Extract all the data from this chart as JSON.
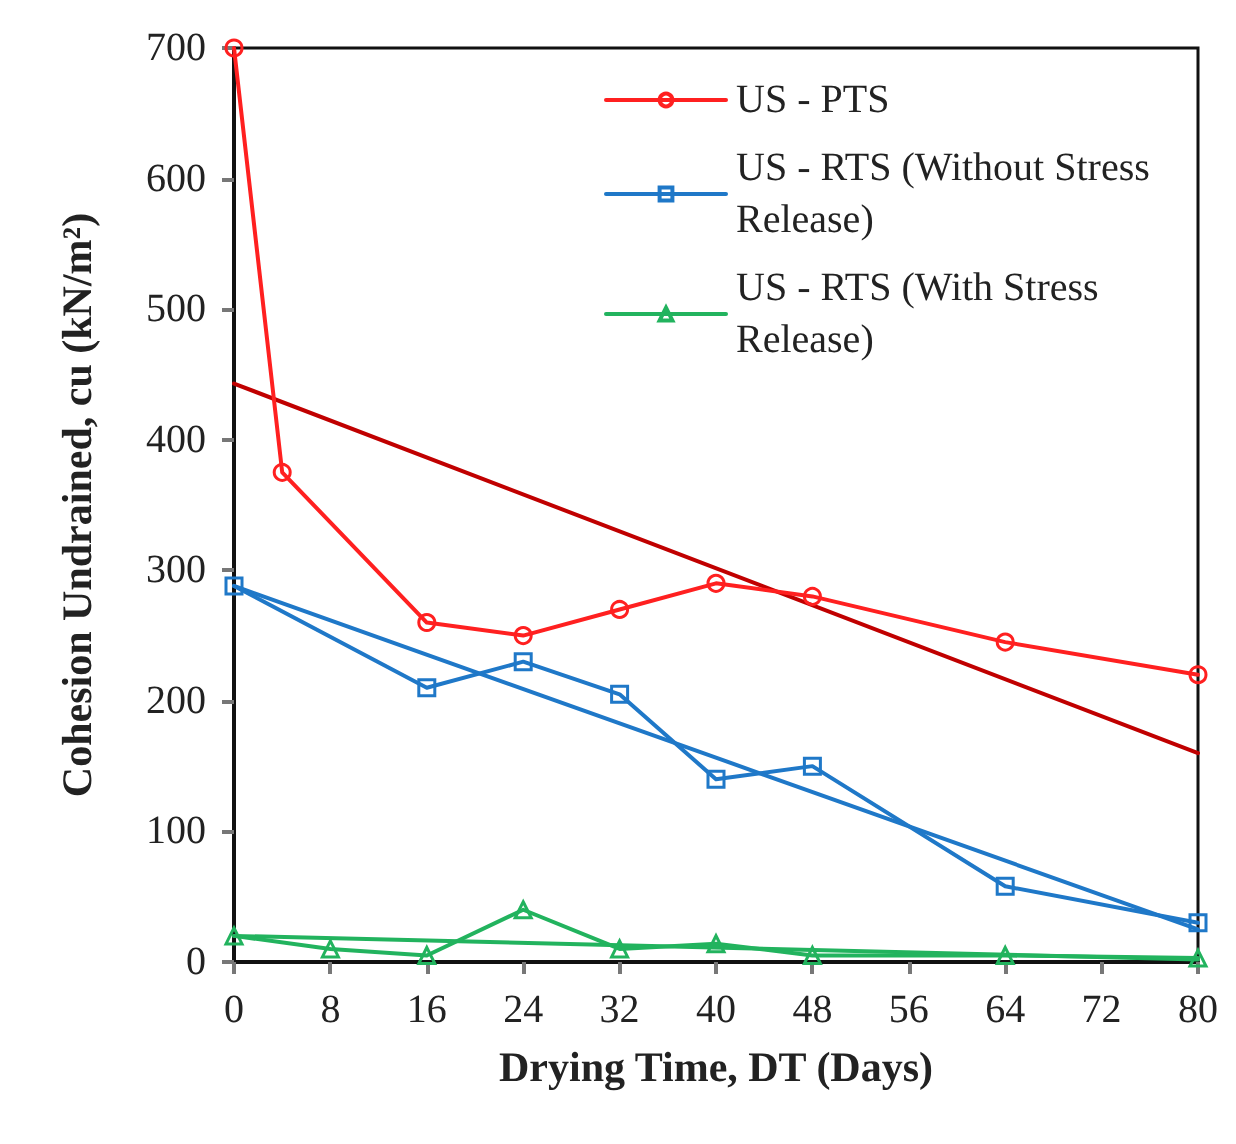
{
  "chart_data": {
    "type": "line",
    "xlabel": "Drying Time, DT (Days)",
    "ylabel": "Cohesion Undrained, cu (kN/m²)",
    "xlim": [
      0,
      80
    ],
    "xticks": [
      0,
      8,
      16,
      24,
      32,
      40,
      48,
      56,
      64,
      72,
      80
    ],
    "ylim": [
      0,
      700
    ],
    "yticks": [
      0,
      100,
      200,
      300,
      400,
      500,
      600,
      700
    ],
    "grid": false,
    "legend": "top right",
    "series": [
      {
        "name": "US - PTS",
        "color": "#ff2020",
        "marker": "circle",
        "x": [
          0,
          4,
          16,
          24,
          32,
          40,
          48,
          64,
          80
        ],
        "values": [
          700,
          375,
          260,
          250,
          270,
          290,
          280,
          245,
          220
        ]
      },
      {
        "name": "US - RTS (Without Stress Release)",
        "color": "#1f78c8",
        "marker": "square",
        "x": [
          0,
          16,
          24,
          32,
          40,
          48,
          64,
          80
        ],
        "values": [
          288,
          210,
          230,
          205,
          140,
          150,
          58,
          30
        ]
      },
      {
        "name": "US - RTS (With Stress Release)",
        "color": "#22b35e",
        "marker": "triangle",
        "x": [
          0,
          8,
          16,
          24,
          32,
          40,
          48,
          64,
          80
        ],
        "values": [
          20,
          10,
          5,
          40,
          10,
          14,
          5,
          5,
          3
        ]
      },
      {
        "color": "#c00000",
        "marker": "none",
        "x": [
          0,
          80
        ],
        "values": [
          443,
          160
        ]
      },
      {
        "color": "#1f78c8",
        "marker": "none",
        "x": [
          0,
          80
        ],
        "values": [
          288,
          25
        ]
      },
      {
        "color": "#22b35e",
        "marker": "none",
        "x": [
          0,
          80
        ],
        "values": [
          20,
          2
        ]
      }
    ]
  }
}
